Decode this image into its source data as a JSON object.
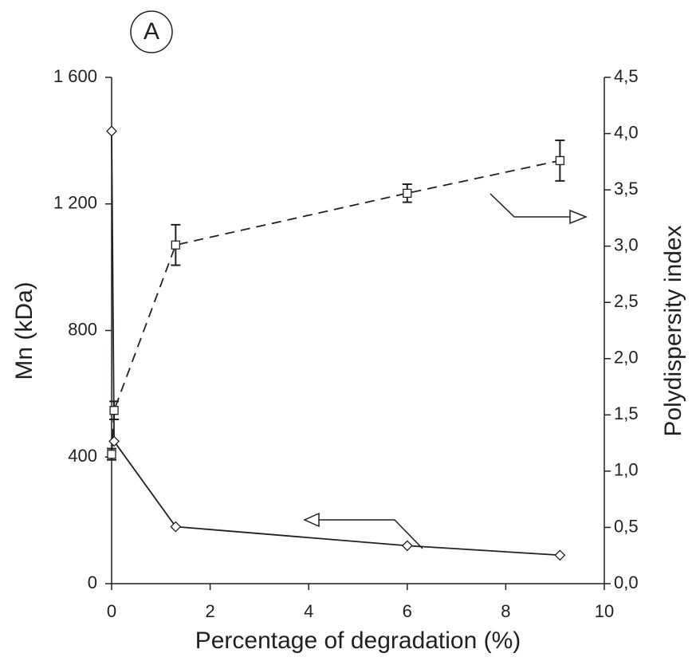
{
  "chart_data": {
    "type": "line",
    "panel_label": "A",
    "x_label": "Percentage of degradation (%)",
    "y_label": "Mn (kDa)",
    "y2_label": "Polydispersity index",
    "x": [
      0,
      0.05,
      1.3,
      6,
      9.1
    ],
    "xlim": [
      0,
      10
    ],
    "xticks": [
      0,
      2,
      4,
      6,
      8,
      10
    ],
    "ylim": [
      0,
      1600
    ],
    "yticks": [
      0,
      400,
      800,
      {
        "value": 1200,
        "label": "1 200"
      },
      {
        "value": 1600,
        "label": "1 600"
      }
    ],
    "y2lim": [
      0,
      4.5
    ],
    "y2ticks": [
      {
        "value": 0,
        "label": "0,0"
      },
      {
        "value": 0.5,
        "label": "0,5"
      },
      {
        "value": 1,
        "label": "1,0"
      },
      {
        "value": 1.5,
        "label": "1,5"
      },
      {
        "value": 2,
        "label": "2,0"
      },
      {
        "value": 2.5,
        "label": "2,5"
      },
      {
        "value": 3,
        "label": "3,0"
      },
      {
        "value": 3.5,
        "label": "3,5"
      },
      {
        "value": 4,
        "label": "4,0"
      },
      {
        "value": 4.5,
        "label": "4,5"
      }
    ],
    "series": [
      {
        "color": "#231f20",
        "marker": "diamond",
        "dash": "solid",
        "axis": "y",
        "values": [
          1430,
          450,
          180,
          120,
          90
        ]
      },
      {
        "color": "#231f20",
        "marker": "square",
        "dash": "dashed",
        "axis": "y2",
        "values": [
          1.15,
          1.54,
          3.01,
          3.47,
          3.76
        ],
        "errors": [
          0.05,
          0.08,
          0.18,
          0.08,
          0.18
        ]
      }
    ]
  }
}
